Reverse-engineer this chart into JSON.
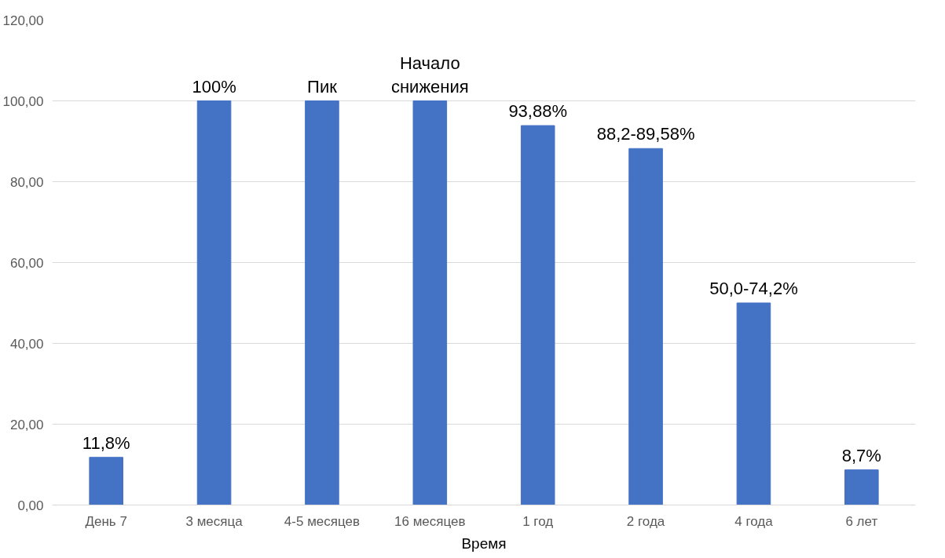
{
  "chart_data": {
    "type": "bar",
    "xlabel": "Время",
    "categories": [
      "День 7",
      "3 месяца",
      "4-5 месяцев",
      "16 месяцев",
      "1 год",
      "2 года",
      "4 года",
      "6 лет"
    ],
    "values": [
      11.8,
      100,
      100,
      100,
      93.88,
      88.2,
      50.0,
      8.7
    ],
    "value_labels": [
      "11,8%",
      "100%",
      "Пик",
      "Начало\nснижения",
      "93,88%",
      "88,2-89,58%",
      "50,0-74,2%",
      "8,7%"
    ],
    "color": "#4472c4",
    "ylim": [
      0,
      120
    ],
    "yticks": [
      {
        "value": 0,
        "label": "0,00"
      },
      {
        "value": 20,
        "label": "20,00"
      },
      {
        "value": 40,
        "label": "40,00"
      },
      {
        "value": 60,
        "label": "60,00"
      },
      {
        "value": 80,
        "label": "80,00"
      },
      {
        "value": 100,
        "label": "100,00"
      },
      {
        "value": 120,
        "label": "120,00"
      }
    ],
    "grid": "y"
  }
}
